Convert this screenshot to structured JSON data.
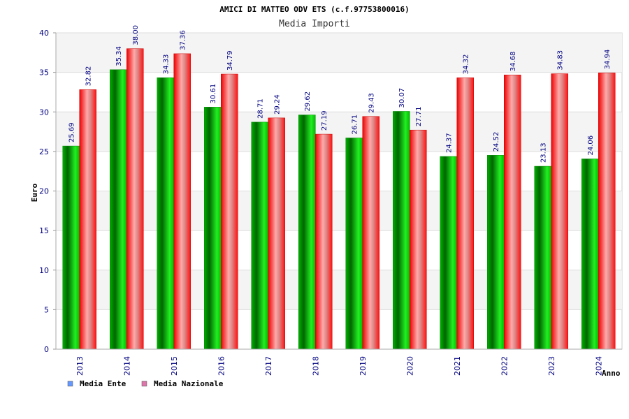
{
  "chart_data": {
    "type": "bar",
    "title": "AMICI DI MATTEO ODV ETS (c.f.97753800016)",
    "subtitle": "Media Importi",
    "ylabel": "Euro",
    "xlabel": "Anno",
    "ylim": [
      0,
      40
    ],
    "yticks": [
      0,
      5,
      10,
      15,
      20,
      25,
      30,
      35,
      40
    ],
    "grid": true,
    "legend_position": "bottom-left",
    "categories": [
      "2013",
      "2014",
      "2015",
      "2016",
      "2017",
      "2018",
      "2019",
      "2020",
      "2021",
      "2022",
      "2023",
      "2024"
    ],
    "series": [
      {
        "name": "Media Ente",
        "color": "#00aa00",
        "legend_color": "#6699ff",
        "values": [
          25.69,
          35.34,
          34.33,
          30.61,
          28.71,
          29.62,
          26.71,
          30.07,
          24.37,
          24.52,
          23.13,
          24.06
        ],
        "labels": [
          "25.69",
          "35.34",
          "34.33",
          "30.61",
          "28.71",
          "29.62",
          "26.71",
          "30.07",
          "24.37",
          "24.52",
          "23.13",
          "24.06"
        ]
      },
      {
        "name": "Media Nazionale",
        "color": "#ee1111",
        "legend_color": "#dd77aa",
        "values": [
          32.82,
          38.0,
          37.36,
          34.79,
          29.24,
          27.19,
          29.43,
          27.71,
          34.32,
          34.68,
          34.83,
          34.94
        ],
        "labels": [
          "32.82",
          "38.00",
          "37.36",
          "34.79",
          "29.24",
          "27.19",
          "29.43",
          "27.71",
          "34.32",
          "34.68",
          "34.83",
          "34.94"
        ]
      }
    ]
  }
}
